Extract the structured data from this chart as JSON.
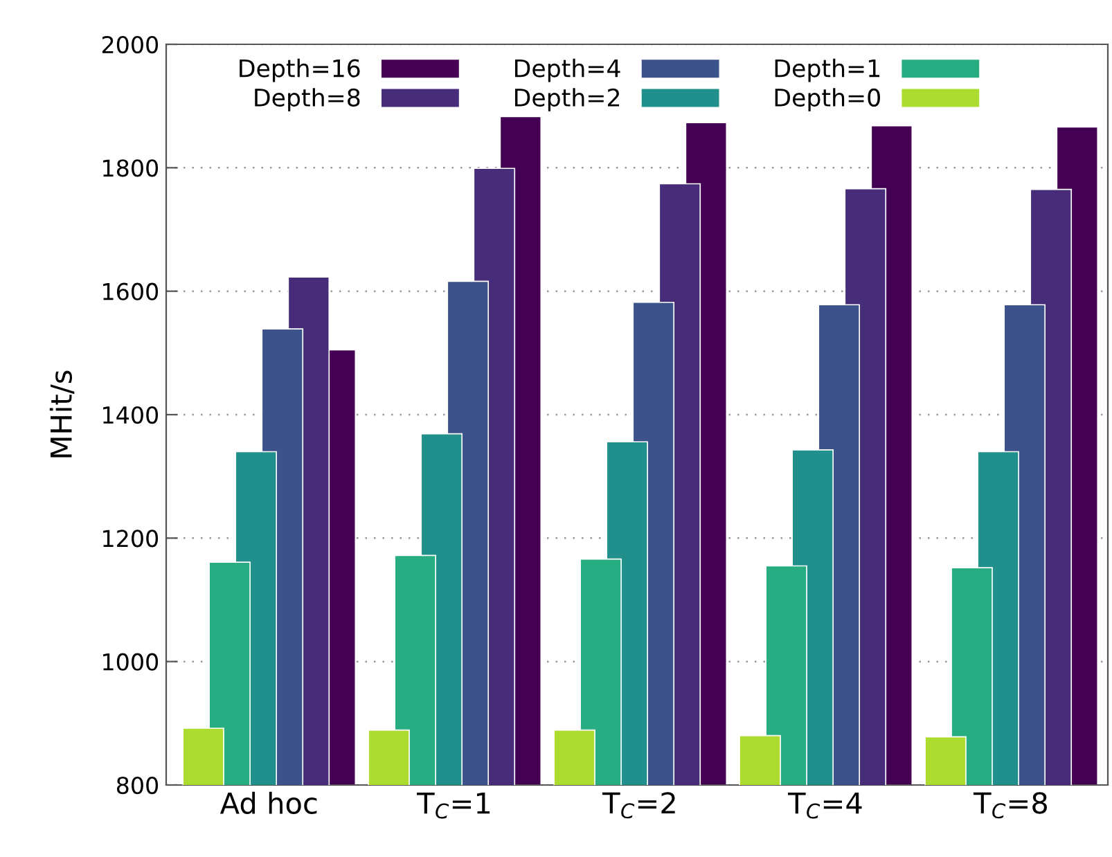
{
  "chart_data": {
    "type": "bar",
    "ylabel": "MHit/s",
    "categories": [
      "Ad hoc",
      "T$_{C}$=1",
      "T$_{C}$=2",
      "T$_{C}$=4",
      "T$_{C}$=8"
    ],
    "ylim": [
      800,
      2000
    ],
    "yticks": [
      800,
      1000,
      1200,
      1400,
      1600,
      1800,
      2000
    ],
    "grid": "y",
    "legend": "top",
    "series": [
      {
        "name": "Depth=16",
        "color": "#440154",
        "values": [
          1505,
          1883,
          1873,
          1868,
          1866
        ]
      },
      {
        "name": "Depth=8",
        "color": "#472c7a",
        "values": [
          1623,
          1799,
          1774,
          1766,
          1765
        ]
      },
      {
        "name": "Depth=4",
        "color": "#3b528b",
        "values": [
          1539,
          1616,
          1582,
          1578,
          1578
        ]
      },
      {
        "name": "Depth=2",
        "color": "#21908d",
        "values": [
          1340,
          1369,
          1356,
          1343,
          1340
        ]
      },
      {
        "name": "Depth=1",
        "color": "#27ad81",
        "values": [
          1161,
          1172,
          1166,
          1155,
          1152
        ]
      },
      {
        "name": "Depth=0",
        "color": "#addc30",
        "values": [
          892,
          889,
          889,
          880,
          878
        ]
      }
    ]
  }
}
